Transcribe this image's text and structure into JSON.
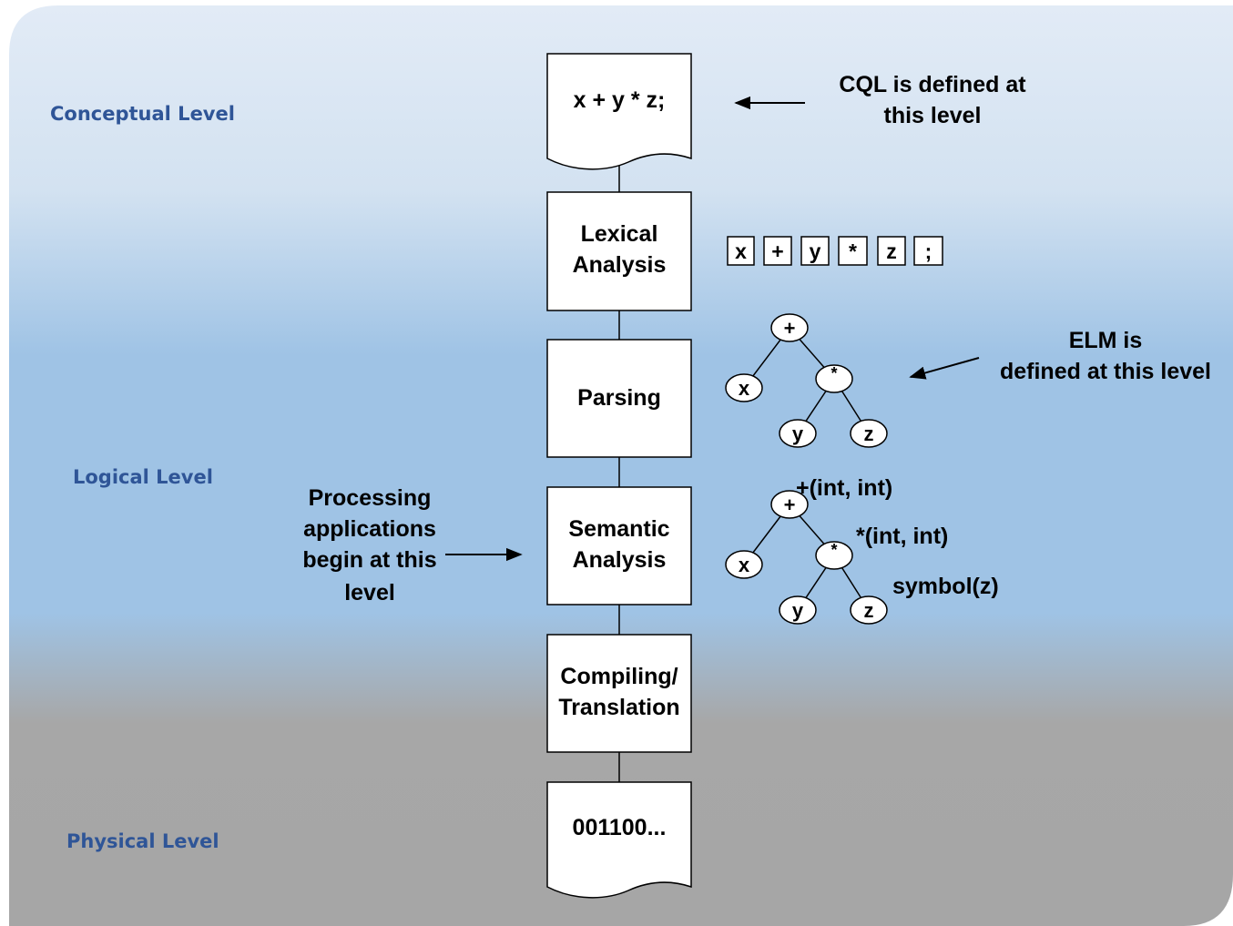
{
  "levels": {
    "conceptual": "Conceptual Level",
    "logical": "Logical Level",
    "physical": "Physical Level"
  },
  "steps": {
    "source": [
      "x + y * z;"
    ],
    "lexical": [
      "Lexical",
      "Analysis"
    ],
    "parsing": [
      "Parsing"
    ],
    "semantic": [
      "Semantic",
      "Analysis"
    ],
    "compiling": [
      "Compiling/",
      "Translation"
    ],
    "output": [
      "001100..."
    ]
  },
  "notes": {
    "cql": [
      "CQL is defined at",
      "this level"
    ],
    "elm": [
      "ELM is",
      "defined at this level"
    ],
    "processing": [
      "Processing",
      "applications",
      "begin at this",
      "level"
    ]
  },
  "tokens": [
    "x",
    "+",
    "y",
    "*",
    "z",
    ";"
  ],
  "parse_tree": {
    "root": "+",
    "left": "x",
    "op": "*",
    "op_left": "y",
    "op_right": "z"
  },
  "semantic_tree": {
    "root": "+",
    "left": "x",
    "op": "*",
    "op_left": "y",
    "op_right": "z",
    "root_type": "+(int, int)",
    "op_type": "*(int, int)",
    "z_type": "symbol(z)"
  },
  "colors": {
    "top": "#dfe8f4",
    "middle": "#9dc3e6",
    "bottom": "#a6a6a6",
    "level_text": "#2f5597"
  }
}
